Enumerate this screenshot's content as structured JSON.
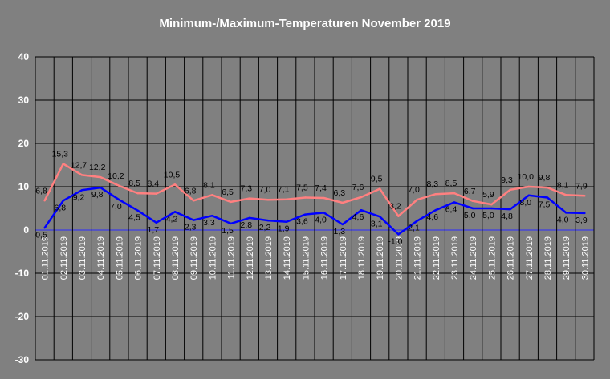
{
  "chart_data": {
    "type": "line",
    "title": "Minimum-/Maximum-Temperaturen November 2019",
    "xlabel": "",
    "ylabel": "",
    "ylim": [
      -30,
      40
    ],
    "yticks": [
      40,
      30,
      20,
      10,
      0,
      -10,
      -20,
      -30
    ],
    "grid": true,
    "legend": "none",
    "colors": {
      "background": "#808080",
      "grid": "#000000",
      "zero_line": "#2a2aff",
      "max_series": "#ff8080",
      "min_series": "#0000ff",
      "text": "#ffffff",
      "labels": "#000000"
    },
    "categories": [
      "01.11.2019",
      "02.11.2019",
      "03.11.2019",
      "04.11.2019",
      "05.11.2019",
      "06.11.2019",
      "07.11.2019",
      "08.11.2019",
      "09.11.2019",
      "10.11.2019",
      "11.11.2019",
      "12.11.2019",
      "13.11.2019",
      "14.11.2019",
      "15.11.2019",
      "16.11.2019",
      "17.11.2019",
      "18.11.2019",
      "19.11.2019",
      "20.11.2019",
      "21.11.2019",
      "22.11.2019",
      "23.11.2019",
      "24.11.2019",
      "25.11.2019",
      "26.11.2019",
      "27.11.2019",
      "28.11.2019",
      "29.11.2019",
      "30.11.2019"
    ],
    "series": [
      {
        "key": "max",
        "values": [
          6.8,
          15.3,
          12.7,
          12.2,
          10.2,
          8.5,
          8.4,
          10.5,
          6.8,
          8.1,
          6.5,
          7.3,
          7.0,
          7.1,
          7.5,
          7.4,
          6.3,
          7.6,
          9.5,
          3.2,
          7.0,
          8.3,
          8.5,
          6.7,
          5.9,
          9.3,
          10.0,
          9.8,
          8.1,
          7.9
        ],
        "labels": [
          "6,8",
          "15,3",
          "12,7",
          "12,2",
          "10,2",
          "8,5",
          "8,4",
          "10,5",
          "6,8",
          "8,1",
          "6,5",
          "7,3",
          "7,0",
          "7,1",
          "7,5",
          "7,4",
          "6,3",
          "7,6",
          "9,5",
          "3,2",
          "7,0",
          "8,3",
          "8,5",
          "6,7",
          "5,9",
          "9,3",
          "10,0",
          "9,8",
          "8,1",
          "7,9"
        ]
      },
      {
        "key": "min",
        "values": [
          0.5,
          6.8,
          9.2,
          9.8,
          7.0,
          4.5,
          1.7,
          4.2,
          2.3,
          3.3,
          1.5,
          2.8,
          2.2,
          1.9,
          3.6,
          4.0,
          1.3,
          4.6,
          3.1,
          -1.0,
          2.1,
          4.6,
          6.4,
          5.0,
          5.0,
          4.8,
          8.0,
          7.5,
          4.0,
          3.9
        ],
        "labels": [
          "0,5",
          "6,8",
          "9,2",
          "9,8",
          "7,0",
          "4,5",
          "1,7",
          "4,2",
          "2,3",
          "3,3",
          "1,5",
          "2,8",
          "2,2",
          "1,9",
          "3,6",
          "4,0",
          "1,3",
          "4,6",
          "3,1",
          "-1,0",
          "2,1",
          "4,6",
          "6,4",
          "5,0",
          "5,0",
          "4,8",
          "8,0",
          "7,5",
          "4,0",
          "3,9"
        ]
      }
    ]
  }
}
